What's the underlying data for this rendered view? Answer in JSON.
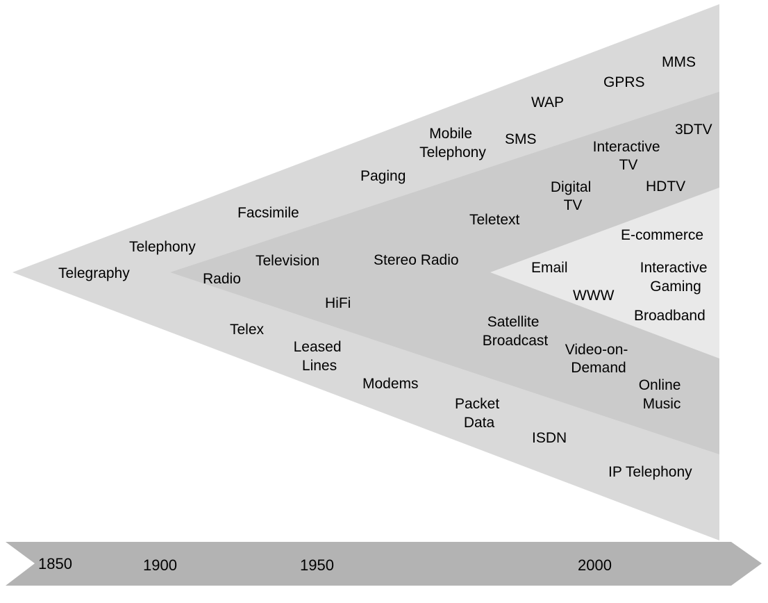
{
  "colors": {
    "outer_wedge": "#d9d9d9",
    "middle_wedge": "#cbcbcb",
    "inner_wedge": "#e9e9e9",
    "timeline_arrow": "#b3b3b3",
    "text": "#000000"
  },
  "timeline": {
    "years": [
      "1850",
      "1900",
      "1950",
      "2000"
    ]
  },
  "labels": {
    "telegraphy": "Telegraphy",
    "telephony": "Telephony",
    "facsimile": "Facsimile",
    "paging": "Paging",
    "mobile_telephony": [
      "Mobile",
      "Telephony"
    ],
    "sms": "SMS",
    "wap": "WAP",
    "gprs": "GPRS",
    "mms": "MMS",
    "radio": "Radio",
    "television": "Television",
    "stereo_radio": "Stereo Radio",
    "teletext": "Teletext",
    "digital_tv": [
      "Digital",
      "TV"
    ],
    "interactive_tv": [
      "Interactive",
      "TV"
    ],
    "tdtv": "3DTV",
    "hdtv": "HDTV",
    "hifi": "HiFi",
    "satellite_broadcast": [
      "Satellite",
      "Broadcast"
    ],
    "video_on_demand": [
      "Video-on-",
      "Demand"
    ],
    "online_music": [
      "Online",
      "Music"
    ],
    "ecommerce": "E-commerce",
    "email": "Email",
    "interactive_gaming": [
      "Interactive",
      "Gaming"
    ],
    "www": "WWW",
    "broadband": "Broadband",
    "telex": "Telex",
    "leased_lines": [
      "Leased",
      "Lines"
    ],
    "modems": "Modems",
    "packet_data": [
      "Packet",
      "Data"
    ],
    "isdn": "ISDN",
    "ip_telephony": "IP Telephony"
  }
}
